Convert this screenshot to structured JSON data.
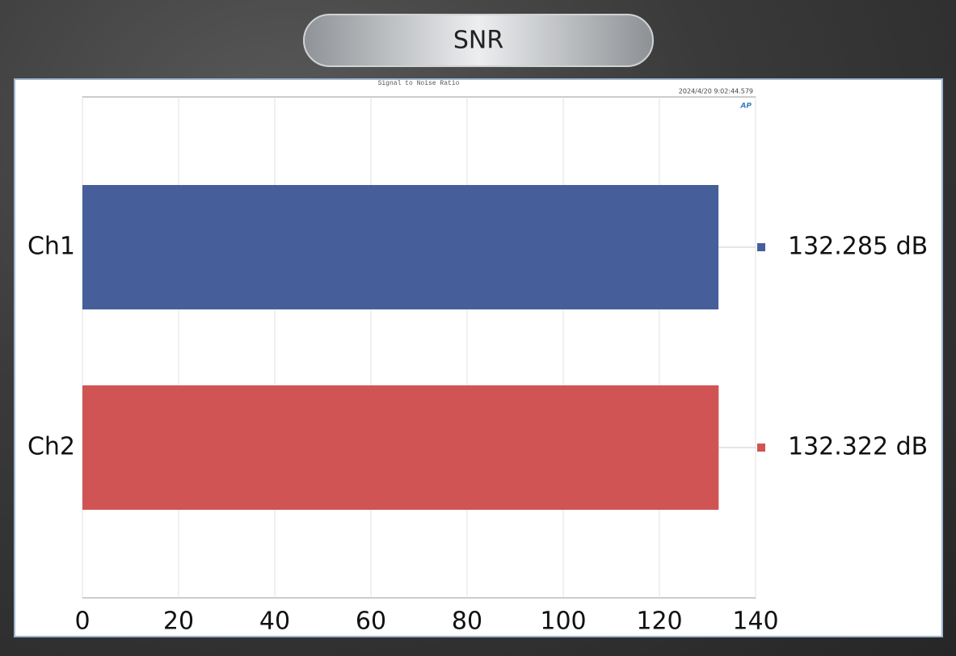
{
  "chart_data": {
    "type": "bar",
    "orientation": "horizontal",
    "title": "SNR",
    "subtitle": "Signal to Noise Ratio",
    "timestamp": "2024/4/20 9:02:44.579",
    "logo": "AP",
    "categories": [
      "Ch1",
      "Ch2"
    ],
    "values": [
      132.285,
      132.322
    ],
    "value_labels": [
      "132.285 dB",
      "132.322 dB"
    ],
    "colors": [
      "#465f9b",
      "#d15454"
    ],
    "xlim": [
      0,
      140
    ],
    "xticks": [
      0,
      20,
      40,
      60,
      80,
      100,
      120,
      140
    ],
    "grid": true
  }
}
